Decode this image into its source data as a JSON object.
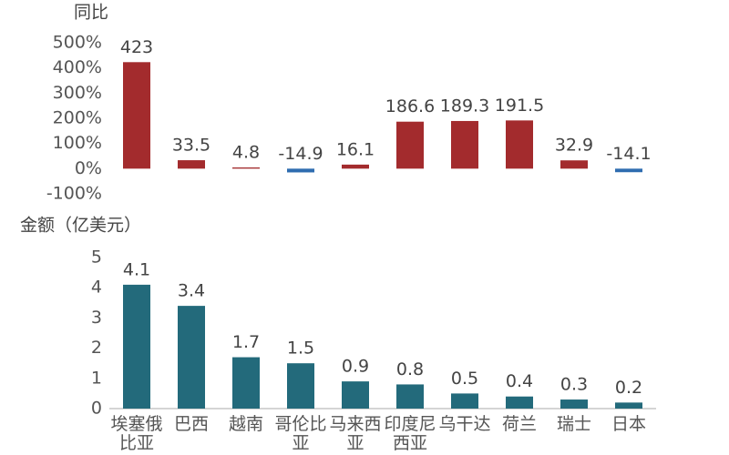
{
  "chart_data": [
    {
      "type": "bar",
      "ylabel": "同比",
      "values": [
        423,
        33.5,
        4.8,
        -14.9,
        16.1,
        186.6,
        189.3,
        191.5,
        32.9,
        -14.1
      ],
      "color": "#a32b2d",
      "negative_color": "#2f6db0",
      "ylim": [
        -100,
        500
      ],
      "yticks": [
        {
          "value": -100,
          "label": "-100%"
        },
        {
          "value": 0,
          "label": "0%"
        },
        {
          "value": 100,
          "label": "100%"
        },
        {
          "value": 200,
          "label": "200%"
        },
        {
          "value": 300,
          "label": "300%"
        },
        {
          "value": 400,
          "label": "400%"
        },
        {
          "value": 500,
          "label": "500%"
        }
      ]
    },
    {
      "type": "bar",
      "ylabel": "金额（亿美元）",
      "categories": [
        "埃塞俄比亚",
        "巴西",
        "越南",
        "哥伦比亚",
        "马来西亚",
        "印度尼西亚",
        "乌干达",
        "荷兰",
        "瑞士",
        "日本"
      ],
      "values": [
        4.1,
        3.4,
        1.7,
        1.5,
        0.9,
        0.8,
        0.5,
        0.4,
        0.3,
        0.2
      ],
      "color": "#236a7b",
      "ylim": [
        0,
        5
      ],
      "yticks": [
        0,
        1,
        2,
        3,
        4,
        5
      ]
    }
  ]
}
